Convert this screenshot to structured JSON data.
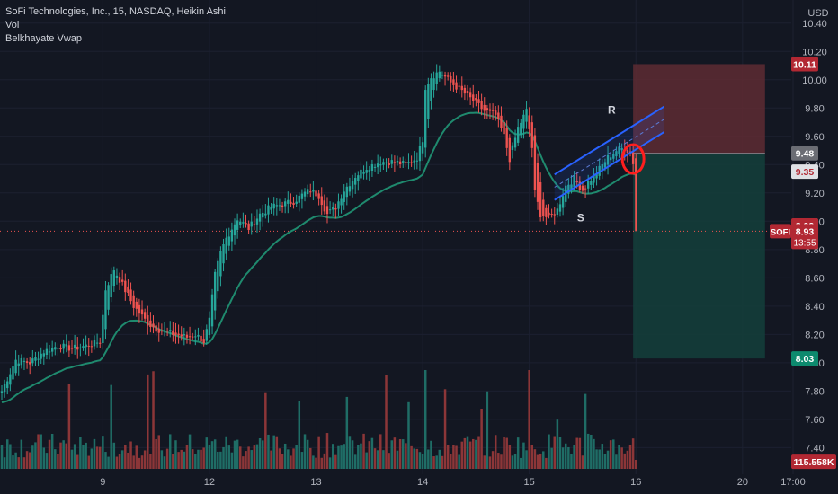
{
  "header": {
    "title": "SoFi Technologies, Inc., 15, NASDAQ, Heikin Ashi",
    "indicators": [
      "Vol",
      "Belkhayate Vwap"
    ]
  },
  "currency": "USD",
  "colors": {
    "background": "#131722",
    "up": "#26a69a",
    "down": "#ef5350",
    "volume_up": "#1f6d66",
    "volume_down": "#8c3638",
    "vwap": "#1f8a6e",
    "channel": "#2962ff",
    "short_stop_zone": "#5e2b33",
    "short_target_zone": "#143d3a"
  },
  "chart_data": {
    "type": "candlestick",
    "ylim": [
      7.25,
      10.5
    ],
    "y_ticks": [
      7.4,
      7.6,
      7.8,
      8.0,
      8.2,
      8.4,
      8.6,
      8.8,
      9.0,
      9.2,
      9.4,
      9.6,
      9.8,
      10.0,
      10.2,
      10.4
    ],
    "y_tick_labels": [
      "7.40",
      "7.60",
      "7.80",
      "8.00",
      "8.20",
      "8.40",
      "8.60",
      "8.80",
      "9.00",
      "9.20",
      "9.40",
      "9.60",
      "9.80",
      "10.00",
      "10.20",
      "10.40"
    ],
    "x_labels": [
      {
        "label": "9",
        "bar": 36
      },
      {
        "label": "12",
        "bar": 74
      },
      {
        "label": "13",
        "bar": 112
      },
      {
        "label": "14",
        "bar": 150
      },
      {
        "label": "15",
        "bar": 188
      },
      {
        "label": "16",
        "bar": 226
      },
      {
        "label": "20",
        "bar": 264
      },
      {
        "label": "17:00",
        "bar": 282
      }
    ],
    "bar_count_visible": 282,
    "last_bar": 226,
    "anchors": [
      [
        0,
        7.8
      ],
      [
        5,
        8.02
      ],
      [
        10,
        8.0
      ],
      [
        15,
        8.08
      ],
      [
        20,
        8.12
      ],
      [
        25,
        8.1
      ],
      [
        30,
        8.12
      ],
      [
        35,
        8.15
      ],
      [
        37,
        8.52
      ],
      [
        40,
        8.66
      ],
      [
        43,
        8.55
      ],
      [
        47,
        8.4
      ],
      [
        52,
        8.28
      ],
      [
        55,
        8.24
      ],
      [
        58,
        8.22
      ],
      [
        62,
        8.2
      ],
      [
        66,
        8.18
      ],
      [
        69,
        8.2
      ],
      [
        72,
        8.15
      ],
      [
        74,
        8.3
      ],
      [
        76,
        8.62
      ],
      [
        78,
        8.78
      ],
      [
        80,
        8.88
      ],
      [
        84,
        9.02
      ],
      [
        88,
        8.95
      ],
      [
        92,
        9.05
      ],
      [
        96,
        9.1
      ],
      [
        100,
        9.12
      ],
      [
        104,
        9.14
      ],
      [
        108,
        9.2
      ],
      [
        110,
        9.22
      ],
      [
        113,
        9.18
      ],
      [
        116,
        9.05
      ],
      [
        119,
        9.1
      ],
      [
        122,
        9.22
      ],
      [
        126,
        9.32
      ],
      [
        130,
        9.38
      ],
      [
        135,
        9.42
      ],
      [
        140,
        9.42
      ],
      [
        144,
        9.4
      ],
      [
        148,
        9.45
      ],
      [
        150,
        9.58
      ],
      [
        151,
        9.95
      ],
      [
        153,
        10.02
      ],
      [
        156,
        10.06
      ],
      [
        160,
        9.98
      ],
      [
        164,
        9.92
      ],
      [
        168,
        9.85
      ],
      [
        172,
        9.78
      ],
      [
        176,
        9.75
      ],
      [
        179,
        9.6
      ],
      [
        181,
        9.44
      ],
      [
        184,
        9.66
      ],
      [
        187,
        9.78
      ],
      [
        189,
        9.52
      ],
      [
        190,
        9.2
      ],
      [
        192,
        9.05
      ],
      [
        195,
        9.02
      ],
      [
        198,
        9.08
      ],
      [
        201,
        9.25
      ],
      [
        204,
        9.3
      ],
      [
        207,
        9.22
      ],
      [
        210,
        9.3
      ],
      [
        213,
        9.37
      ],
      [
        216,
        9.45
      ],
      [
        219,
        9.5
      ],
      [
        222,
        9.52
      ],
      [
        224,
        9.48
      ],
      [
        226,
        9.35
      ]
    ],
    "last_close": 8.93,
    "sell_drop_to": 8.93,
    "short_position": {
      "entry": 9.48,
      "stop": 10.11,
      "target": 8.03,
      "start_bar": 225,
      "end_bar": 272
    },
    "channel": {
      "start_bar": 197,
      "end_bar": 236,
      "mid_start": 9.24,
      "mid_end": 9.72,
      "half_width": 0.09
    },
    "annotations": {
      "resistance_label": "R",
      "support_label": "S",
      "resistance": {
        "bar": 216,
        "price": 9.76
      },
      "support": {
        "bar": 205,
        "price": 9.0
      },
      "circle": {
        "bar": 225,
        "price": 9.44
      }
    },
    "price_badges": [
      {
        "value": "10.11",
        "price": 10.11,
        "bg": "#b22833",
        "fg": "#ffffff"
      },
      {
        "value": "9.48",
        "price": 9.48,
        "bg": "#6b6d74",
        "fg": "#ffffff"
      },
      {
        "value": "9.35",
        "price": 9.35,
        "bg": "#dfe1e5",
        "fg": "#b22833"
      },
      {
        "value": "8.93",
        "price": 8.97,
        "bg": "#b22833",
        "fg": "#ffffff"
      },
      {
        "value": "8.03",
        "price": 8.03,
        "bg": "#0d8a6e",
        "fg": "#ffffff"
      },
      {
        "value": "115.558K",
        "price": 7.3,
        "bg": "#b22833",
        "fg": "#ffffff"
      }
    ],
    "last_price_label": {
      "symbol": "SOFI",
      "value": "8.93",
      "countdown": "13:55"
    }
  }
}
